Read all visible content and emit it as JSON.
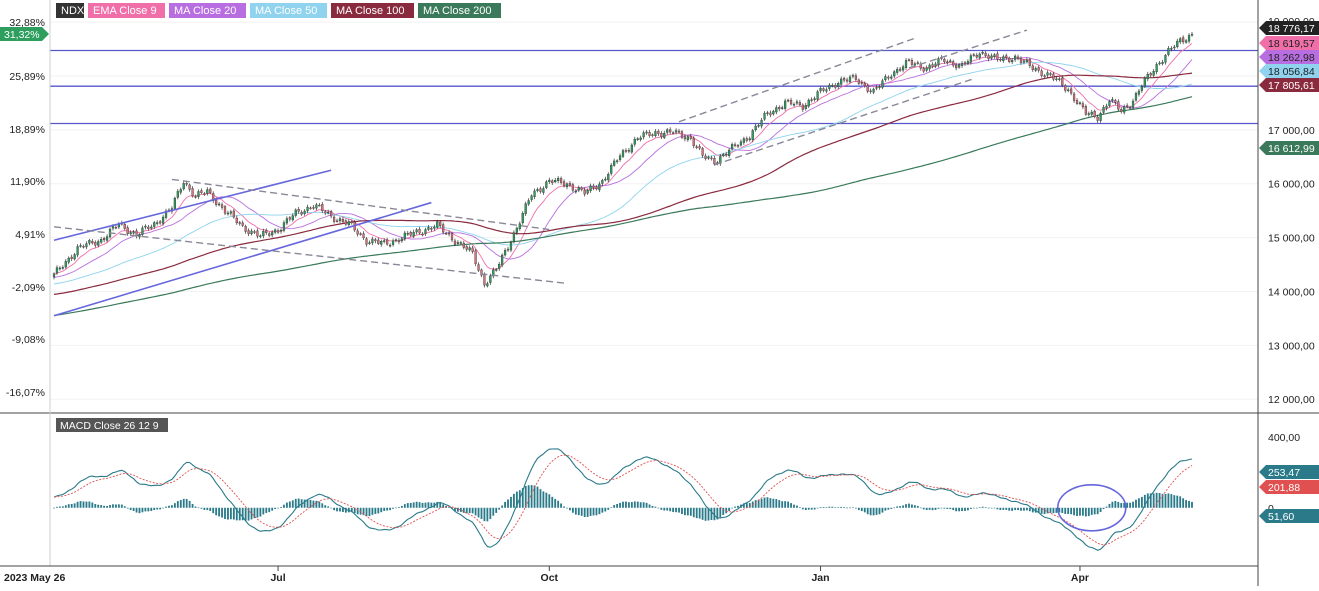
{
  "chart_data": {
    "type": "candlestick",
    "legend": [
      {
        "label": "NDX",
        "bg": "#333333",
        "fg": "#ffffff"
      },
      {
        "label": "EMA Close 9",
        "bg": "#f06fa8",
        "fg": "#ffffff"
      },
      {
        "label": "MA Close 20",
        "bg": "#b86ee0",
        "fg": "#ffffff"
      },
      {
        "label": "MA Close 50",
        "bg": "#8fd3ee",
        "fg": "#ffffff"
      },
      {
        "label": "MA Close 100",
        "bg": "#8a2a3e",
        "fg": "#ffffff"
      },
      {
        "label": "MA Close 200",
        "bg": "#3a7a5a",
        "fg": "#ffffff"
      }
    ],
    "percent_ticks": [
      "32,88%",
      "25,89%",
      "18,89%",
      "11,90%",
      "4,91%",
      "-2,09%",
      "-9,08%",
      "-16,07%"
    ],
    "current_percent": "31,32%",
    "price_ticks": [
      "17 000,00",
      "16 000,00",
      "15 000,00",
      "14 000,00",
      "13 000,00",
      "12 000,00"
    ],
    "price_top_tick_partial": "19 000,00",
    "price_range": [
      11800,
      19150
    ],
    "last_values": [
      {
        "label": "18 776,17",
        "value": 18776.17,
        "color": "#222222"
      },
      {
        "label": "18 619,57",
        "value": 18619.57,
        "color": "#f06fa8"
      },
      {
        "label": "18 262,98",
        "value": 18262.98,
        "color": "#b86ee0"
      },
      {
        "label": "18 056,84",
        "value": 18056.84,
        "color": "#8fd3ee"
      },
      {
        "label": "17 805,61",
        "value": 17805.61,
        "color": "#8a2a3e"
      },
      {
        "label": "16 612,99",
        "value": 16612.99,
        "color": "#3a7a5a"
      }
    ],
    "horizontal_levels": [
      18473,
      17810,
      17118
    ],
    "x_labels": [
      "2023 May 26",
      "Jul",
      "Oct",
      "Jan",
      "Apr"
    ],
    "anchors": [
      [
        0,
        14300
      ],
      [
        8,
        14800
      ],
      [
        16,
        14960
      ],
      [
        22,
        15250
      ],
      [
        28,
        15050
      ],
      [
        34,
        15250
      ],
      [
        40,
        15550
      ],
      [
        44,
        16050
      ],
      [
        48,
        15770
      ],
      [
        52,
        15850
      ],
      [
        58,
        15500
      ],
      [
        64,
        15200
      ],
      [
        70,
        15020
      ],
      [
        76,
        15150
      ],
      [
        82,
        15450
      ],
      [
        88,
        15600
      ],
      [
        94,
        15400
      ],
      [
        100,
        15250
      ],
      [
        106,
        14950
      ],
      [
        112,
        14880
      ],
      [
        118,
        15000
      ],
      [
        124,
        15120
      ],
      [
        130,
        15220
      ],
      [
        136,
        14950
      ],
      [
        142,
        14700
      ],
      [
        146,
        14150
      ],
      [
        150,
        14400
      ],
      [
        154,
        14850
      ],
      [
        158,
        15300
      ],
      [
        162,
        15800
      ],
      [
        168,
        16050
      ],
      [
        174,
        16000
      ],
      [
        180,
        15820
      ],
      [
        186,
        16050
      ],
      [
        192,
        16520
      ],
      [
        198,
        16850
      ],
      [
        204,
        16950
      ],
      [
        210,
        16950
      ],
      [
        216,
        16850
      ],
      [
        220,
        16500
      ],
      [
        224,
        16420
      ],
      [
        230,
        16650
      ],
      [
        236,
        16900
      ],
      [
        242,
        17300
      ],
      [
        248,
        17500
      ],
      [
        254,
        17450
      ],
      [
        260,
        17700
      ],
      [
        266,
        17900
      ],
      [
        272,
        17950
      ],
      [
        278,
        17700
      ],
      [
        284,
        18050
      ],
      [
        290,
        18250
      ],
      [
        296,
        18150
      ],
      [
        302,
        18300
      ],
      [
        308,
        18180
      ],
      [
        314,
        18450
      ],
      [
        320,
        18300
      ],
      [
        326,
        18350
      ],
      [
        332,
        18150
      ],
      [
        338,
        18000
      ],
      [
        344,
        17750
      ],
      [
        350,
        17300
      ],
      [
        354,
        17250
      ],
      [
        358,
        17550
      ],
      [
        362,
        17350
      ],
      [
        366,
        17550
      ],
      [
        370,
        17900
      ],
      [
        374,
        18200
      ],
      [
        378,
        18450
      ],
      [
        382,
        18650
      ],
      [
        386,
        18776
      ]
    ],
    "moving_averages": [
      {
        "name": "EMA Close 9",
        "color": "#f06fa8",
        "period": 9,
        "kind": "ema"
      },
      {
        "name": "MA Close 20",
        "color": "#b86ee0",
        "period": 20,
        "kind": "sma"
      },
      {
        "name": "MA Close 50",
        "color": "#8fd3ee",
        "period": 50,
        "kind": "sma"
      },
      {
        "name": "MA Close 100",
        "color": "#8a2a3e",
        "period": 100,
        "kind": "sma"
      },
      {
        "name": "MA Close 200",
        "color": "#3a7a5a",
        "period": 200,
        "kind": "sma"
      }
    ],
    "trend_lines": [
      {
        "style": "solid",
        "color": "#6666dd",
        "from": [
          0,
          14950
        ],
        "to": [
          94,
          16250
        ]
      },
      {
        "style": "solid",
        "color": "#6666dd",
        "from": [
          0,
          13550
        ],
        "to": [
          128,
          15650
        ]
      },
      {
        "style": "dashed",
        "color": "#888899",
        "from": [
          40,
          16080
        ],
        "to": [
          168,
          15150
        ]
      },
      {
        "style": "dashed",
        "color": "#888899",
        "from": [
          0,
          15200
        ],
        "to": [
          174,
          14150
        ]
      },
      {
        "style": "dashed",
        "color": "#888899",
        "from": [
          212,
          17150
        ],
        "to": [
          292,
          18700
        ]
      },
      {
        "style": "dashed",
        "color": "#888899",
        "from": [
          224,
          16350
        ],
        "to": [
          312,
          17950
        ]
      },
      {
        "style": "dashed",
        "color": "#888899",
        "from": [
          290,
          18150
        ],
        "to": [
          330,
          18850
        ]
      }
    ],
    "macd": {
      "label": "MACD Close 26 12 9",
      "ticks": [
        "400,00",
        "0"
      ],
      "range": [
        -330,
        520
      ],
      "last_values": [
        {
          "label": "253,47",
          "value": 253.47,
          "color": "#2a7a8a"
        },
        {
          "label": "201,88",
          "value": 201.88,
          "color": "#e05050"
        },
        {
          "label": "51,60",
          "value": 51.6,
          "color": "#2a7a8a"
        }
      ],
      "fast": 12,
      "slow": 26,
      "signal": 9,
      "highlight_circle_center_index": 352
    }
  }
}
